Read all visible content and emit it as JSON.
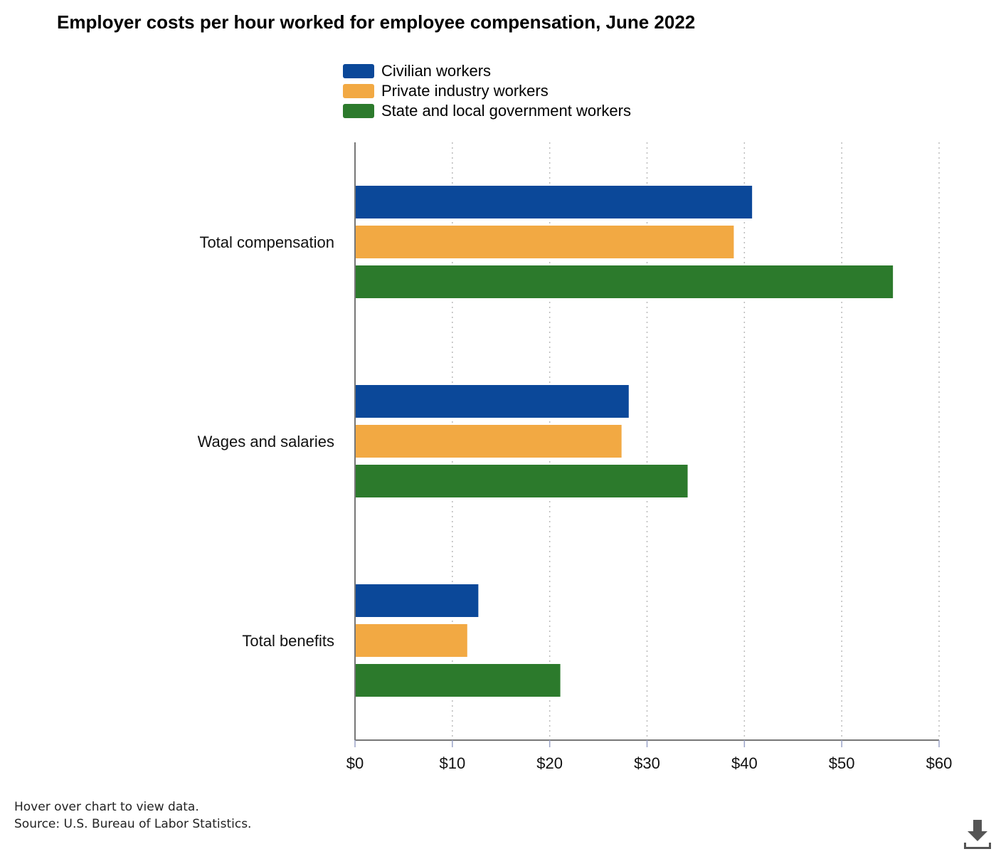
{
  "chart_data": {
    "type": "bar",
    "orientation": "horizontal",
    "title": "Employer costs per hour worked for employee compensation, June 2022",
    "categories": [
      "Total compensation",
      "Wages and salaries",
      "Total benefits"
    ],
    "series": [
      {
        "name": "Civilian workers",
        "color": "#0b4899",
        "values": [
          40.79,
          28.12,
          12.67
        ]
      },
      {
        "name": "Private industry workers",
        "color": "#f2a943",
        "values": [
          38.91,
          27.38,
          11.53
        ]
      },
      {
        "name": "State and local government workers",
        "color": "#2c7a2c",
        "values": [
          55.26,
          34.17,
          21.09
        ]
      }
    ],
    "x_ticks": [
      "$0",
      "$10",
      "$20",
      "$30",
      "$40",
      "$50",
      "$60"
    ],
    "xlim": [
      0,
      60
    ],
    "xlabel": "",
    "ylabel": "",
    "grid": "vertical dotted",
    "legend_position": "top"
  },
  "footer": {
    "hover_note": "Hover over chart to view data.",
    "source": "Source: U.S. Bureau of Labor Statistics."
  },
  "icons": {
    "download": "download-icon"
  }
}
